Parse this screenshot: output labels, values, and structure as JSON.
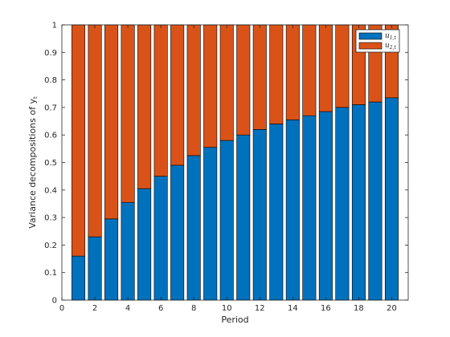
{
  "chart_data": {
    "type": "bar",
    "stacked": true,
    "x": [
      1,
      2,
      3,
      4,
      5,
      6,
      7,
      8,
      9,
      10,
      11,
      12,
      13,
      14,
      15,
      16,
      17,
      18,
      19,
      20
    ],
    "series": [
      {
        "name": "u1,t",
        "color": "#0072BD",
        "values": [
          0.16,
          0.23,
          0.295,
          0.355,
          0.405,
          0.45,
          0.49,
          0.525,
          0.555,
          0.58,
          0.6,
          0.62,
          0.64,
          0.655,
          0.67,
          0.685,
          0.7,
          0.71,
          0.72,
          0.735
        ]
      },
      {
        "name": "u2,t",
        "color": "#D95319",
        "values": [
          0.84,
          0.77,
          0.705,
          0.645,
          0.595,
          0.55,
          0.51,
          0.475,
          0.445,
          0.42,
          0.4,
          0.38,
          0.36,
          0.345,
          0.33,
          0.315,
          0.3,
          0.29,
          0.28,
          0.265
        ]
      }
    ],
    "title": "",
    "xlabel": "Period",
    "ylabel": "Variance decompositions of y",
    "ylabel_subscript": "t",
    "xlim": [
      0,
      21
    ],
    "ylim": [
      0,
      1
    ],
    "xticks": [
      0,
      2,
      4,
      6,
      8,
      10,
      12,
      14,
      16,
      18,
      20
    ],
    "yticks": [
      0,
      0.1,
      0.2,
      0.3,
      0.4,
      0.5,
      0.6,
      0.7,
      0.8,
      0.9,
      1
    ],
    "ytick_labels": [
      "0",
      "0.1",
      "0.2",
      "0.3",
      "0.4",
      "0.5",
      "0.6",
      "0.7",
      "0.8",
      "0.9",
      "1"
    ],
    "legend": {
      "position": "top-right",
      "entries": [
        {
          "label": "u",
          "subscript": "1,t"
        },
        {
          "label": "u",
          "subscript": "2,t"
        }
      ]
    },
    "grid": false
  }
}
